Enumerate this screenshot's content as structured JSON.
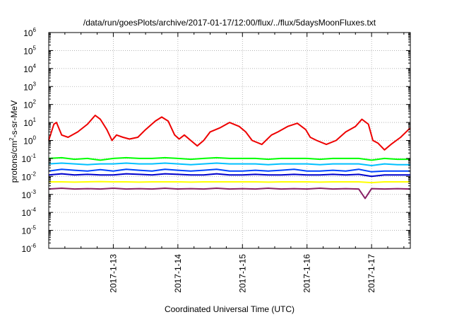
{
  "chart_data": {
    "type": "line",
    "title": "/data/run/goesPlots/archive/2017-01-17/12:00/flux/../flux/5daysMoonFluxes.txt",
    "xlabel": "Coordinated Universal Time (UTC)",
    "ylabel": {
      "pre": "protons/cm",
      "sup": "2",
      "post": "-s-sr-MeV"
    },
    "y_scale": "log",
    "ylim_exp": [
      -6,
      6
    ],
    "y_ticks": [
      {
        "base": "10",
        "exp": "-6",
        "e": -6
      },
      {
        "base": "10",
        "exp": "-5",
        "e": -5
      },
      {
        "base": "10",
        "exp": "-4",
        "e": -4
      },
      {
        "base": "10",
        "exp": "-3",
        "e": -3
      },
      {
        "base": "10",
        "exp": "-2",
        "e": -2
      },
      {
        "base": "10",
        "exp": "-1",
        "e": -1
      },
      {
        "base": "10",
        "exp": "0",
        "e": 0
      },
      {
        "base": "10",
        "exp": "1",
        "e": 1
      },
      {
        "base": "10",
        "exp": "2",
        "e": 2
      },
      {
        "base": "10",
        "exp": "3",
        "e": 3
      },
      {
        "base": "10",
        "exp": "4",
        "e": 4
      },
      {
        "base": "10",
        "exp": "5",
        "e": 5
      },
      {
        "base": "10",
        "exp": "6",
        "e": 6
      }
    ],
    "x_ticks": [
      {
        "label": "2017-1-13",
        "day": 13
      },
      {
        "label": "2017-1-14",
        "day": 14
      },
      {
        "label": "2017-1-15",
        "day": 15
      },
      {
        "label": "2017-1-16",
        "day": 16
      },
      {
        "label": "2017-1-17",
        "day": 17
      }
    ],
    "xlim_day": [
      12.0,
      17.6
    ],
    "grid": true,
    "series": [
      {
        "color": "#ee0000",
        "x": [
          12.0,
          12.08,
          12.12,
          12.2,
          12.3,
          12.45,
          12.6,
          12.72,
          12.8,
          12.9,
          12.98,
          13.05,
          13.15,
          13.25,
          13.38,
          13.5,
          13.65,
          13.75,
          13.85,
          13.95,
          14.02,
          14.1,
          14.2,
          14.3,
          14.4,
          14.5,
          14.65,
          14.8,
          14.95,
          15.05,
          15.15,
          15.3,
          15.45,
          15.55,
          15.7,
          15.85,
          15.98,
          16.05,
          16.15,
          16.3,
          16.45,
          16.6,
          16.75,
          16.85,
          16.95,
          17.02,
          17.1,
          17.2,
          17.3,
          17.45,
          17.6
        ],
        "values": [
          1.0,
          8.0,
          10.0,
          2.0,
          1.5,
          3.0,
          8.0,
          25.0,
          15.0,
          4.0,
          1.0,
          2.0,
          1.5,
          1.2,
          1.5,
          4.0,
          12.0,
          20.0,
          12.0,
          2.0,
          1.2,
          2.0,
          1.0,
          0.5,
          1.0,
          3.0,
          5.0,
          10.0,
          6.0,
          3.0,
          1.0,
          0.6,
          2.0,
          3.0,
          6.0,
          9.0,
          4.0,
          1.5,
          1.0,
          0.6,
          1.0,
          3.0,
          6.0,
          15.0,
          8.0,
          1.0,
          0.7,
          0.3,
          0.6,
          1.5,
          5.0
        ]
      },
      {
        "color": "#00ff00",
        "x": [
          12.0,
          12.2,
          12.4,
          12.6,
          12.8,
          13.0,
          13.2,
          13.4,
          13.6,
          13.8,
          14.0,
          14.2,
          14.4,
          14.6,
          14.8,
          15.0,
          15.2,
          15.4,
          15.6,
          15.8,
          16.0,
          16.2,
          16.4,
          16.6,
          16.8,
          17.0,
          17.2,
          17.4,
          17.6
        ],
        "values": [
          0.1,
          0.11,
          0.09,
          0.1,
          0.08,
          0.1,
          0.11,
          0.1,
          0.1,
          0.11,
          0.1,
          0.09,
          0.1,
          0.11,
          0.1,
          0.1,
          0.1,
          0.09,
          0.1,
          0.1,
          0.1,
          0.09,
          0.1,
          0.1,
          0.1,
          0.08,
          0.1,
          0.09,
          0.09
        ]
      },
      {
        "color": "#00c0ff",
        "x": [
          12.0,
          12.2,
          12.4,
          12.6,
          12.8,
          13.0,
          13.2,
          13.4,
          13.6,
          13.8,
          14.0,
          14.2,
          14.4,
          14.6,
          14.8,
          15.0,
          15.2,
          15.4,
          15.6,
          15.8,
          16.0,
          16.2,
          16.4,
          16.6,
          16.8,
          17.0,
          17.2,
          17.4,
          17.6
        ],
        "values": [
          0.05,
          0.055,
          0.05,
          0.045,
          0.05,
          0.05,
          0.055,
          0.05,
          0.05,
          0.055,
          0.05,
          0.045,
          0.05,
          0.055,
          0.05,
          0.05,
          0.05,
          0.045,
          0.05,
          0.05,
          0.05,
          0.045,
          0.05,
          0.05,
          0.05,
          0.04,
          0.05,
          0.045,
          0.045
        ]
      },
      {
        "color": "#0044ff",
        "x": [
          12.0,
          12.2,
          12.4,
          12.6,
          12.8,
          13.0,
          13.2,
          13.4,
          13.6,
          13.8,
          14.0,
          14.2,
          14.4,
          14.6,
          14.8,
          15.0,
          15.2,
          15.4,
          15.6,
          15.8,
          16.0,
          16.2,
          16.4,
          16.6,
          16.8,
          17.0,
          17.2,
          17.4,
          17.6
        ],
        "values": [
          0.02,
          0.025,
          0.022,
          0.02,
          0.024,
          0.02,
          0.025,
          0.022,
          0.02,
          0.025,
          0.022,
          0.02,
          0.022,
          0.025,
          0.02,
          0.02,
          0.022,
          0.02,
          0.022,
          0.025,
          0.02,
          0.02,
          0.022,
          0.02,
          0.025,
          0.018,
          0.02,
          0.02,
          0.02
        ]
      },
      {
        "color": "#0000cc",
        "x": [
          12.0,
          12.2,
          12.4,
          12.6,
          12.8,
          13.0,
          13.2,
          13.4,
          13.6,
          13.8,
          14.0,
          14.2,
          14.4,
          14.6,
          14.8,
          15.0,
          15.2,
          15.4,
          15.6,
          15.8,
          16.0,
          16.2,
          16.4,
          16.6,
          16.8,
          17.0,
          17.2,
          17.4,
          17.6
        ],
        "values": [
          0.012,
          0.014,
          0.012,
          0.013,
          0.012,
          0.012,
          0.014,
          0.013,
          0.012,
          0.014,
          0.013,
          0.012,
          0.012,
          0.014,
          0.012,
          0.012,
          0.013,
          0.012,
          0.012,
          0.013,
          0.012,
          0.012,
          0.013,
          0.012,
          0.013,
          0.01,
          0.012,
          0.012,
          0.012
        ]
      },
      {
        "color": "#ffff00",
        "x": [
          12.0,
          12.2,
          12.4,
          12.6,
          12.8,
          13.0,
          13.2,
          13.4,
          13.6,
          13.8,
          14.0,
          14.2,
          14.4,
          14.6,
          14.8,
          15.0,
          15.2,
          15.4,
          15.6,
          15.8,
          16.0,
          16.2,
          16.4,
          16.6,
          16.8,
          17.0,
          17.2,
          17.4,
          17.6
        ],
        "values": [
          0.005,
          0.005,
          0.0048,
          0.005,
          0.0052,
          0.005,
          0.005,
          0.0048,
          0.005,
          0.005,
          0.005,
          0.0048,
          0.005,
          0.005,
          0.005,
          0.005,
          0.005,
          0.0048,
          0.005,
          0.005,
          0.005,
          0.0048,
          0.005,
          0.005,
          0.005,
          0.0045,
          0.005,
          0.005,
          0.005
        ]
      },
      {
        "color": "#882266",
        "x": [
          12.0,
          12.2,
          12.4,
          12.6,
          12.8,
          13.0,
          13.2,
          13.4,
          13.6,
          13.8,
          14.0,
          14.2,
          14.4,
          14.6,
          14.8,
          15.0,
          15.2,
          15.4,
          15.6,
          15.8,
          16.0,
          16.2,
          16.4,
          16.6,
          16.8,
          16.9,
          17.0,
          17.2,
          17.4,
          17.6
        ],
        "values": [
          0.002,
          0.0022,
          0.002,
          0.0021,
          0.002,
          0.0022,
          0.002,
          0.0021,
          0.002,
          0.0022,
          0.002,
          0.0021,
          0.002,
          0.0022,
          0.002,
          0.0021,
          0.002,
          0.0022,
          0.002,
          0.0021,
          0.002,
          0.0022,
          0.002,
          0.0021,
          0.002,
          0.0006,
          0.0021,
          0.002,
          0.0021,
          0.002
        ]
      }
    ]
  }
}
